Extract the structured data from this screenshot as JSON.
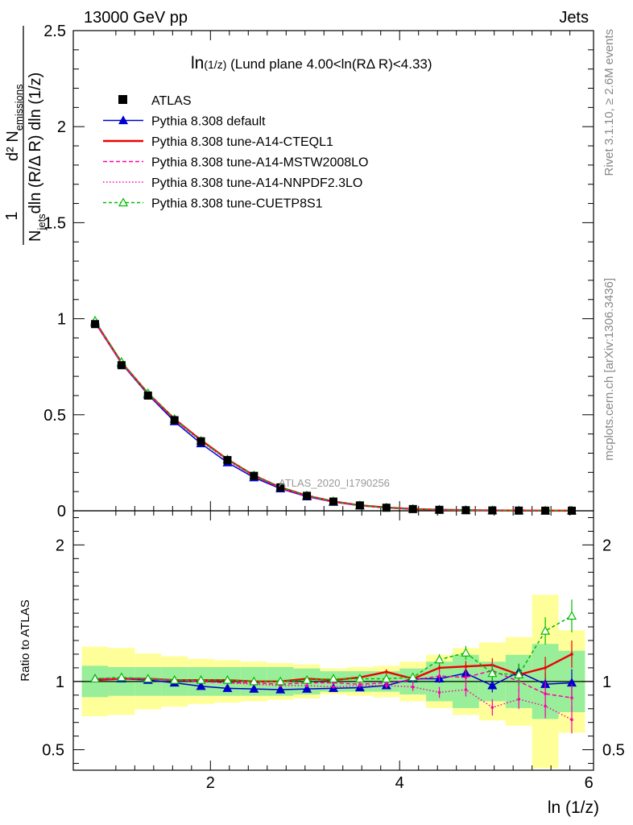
{
  "header": {
    "left": "13000 GeV pp",
    "right": "Jets",
    "side_label_top": "Rivet 3.1.10, ≥ 2.6M events",
    "side_label_bottom": "mcplots.cern.ch [arXiv:1306.3436]",
    "watermark": "ATLAS_2020_I1790256"
  },
  "chart_data": {
    "type": "line",
    "title": "ln(1/z) (Lund plane 4.00<ln(RΔ R)<4.33)",
    "title_main": "ln",
    "title_small": "(1/z)",
    "title_rest": " (Lund plane 4.00<ln(RΔ R)<4.33)",
    "xlabel": "ln (1/z)",
    "ylabel_numerator": "1",
    "ylabel_denominator": "N",
    "ylabel_d2": "d² N",
    "ylabel_emissions": "emissions",
    "ylabel_jets": "jets",
    "ylabel_rest": "dln (R/Δ R) dln (1/z)",
    "ratio_ylabel": "Ratio to ATLAS",
    "xlim": [
      0.55,
      6.05
    ],
    "ylim": [
      0,
      2.5
    ],
    "ratio_ylim": [
      0.35,
      2.25
    ],
    "xticks": [
      2,
      4,
      6
    ],
    "xtick_labels": [
      "2",
      "4",
      "6"
    ],
    "yticks": [
      0,
      0.5,
      1,
      1.5,
      2,
      2.5
    ],
    "ytick_labels": [
      "0",
      "0.5",
      "1",
      "1.5",
      "2",
      "2.5"
    ],
    "ratio_yticks": [
      0.5,
      1,
      2
    ],
    "ratio_ytick_labels": [
      "0.5",
      "1",
      "2"
    ],
    "x": [
      0.78,
      1.06,
      1.34,
      1.62,
      1.9,
      2.18,
      2.46,
      2.74,
      3.02,
      3.3,
      3.58,
      3.86,
      4.14,
      4.42,
      4.7,
      4.98,
      5.26,
      5.54,
      5.82
    ],
    "data": {
      "name": "ATLAS",
      "values": [
        0.972,
        0.758,
        0.6,
        0.472,
        0.362,
        0.264,
        0.182,
        0.122,
        0.078,
        0.048,
        0.028,
        0.016,
        0.009,
        0.005,
        0.003,
        0.0018,
        0.001,
        0.0006,
        0.0004
      ],
      "band_inner": [
        0.115,
        0.105,
        0.105,
        0.105,
        0.105,
        0.105,
        0.105,
        0.105,
        0.095,
        0.075,
        0.075,
        0.075,
        0.095,
        0.145,
        0.195,
        0.145,
        0.195,
        0.275,
        0.225
      ],
      "band_outer": [
        0.255,
        0.245,
        0.205,
        0.185,
        0.165,
        0.155,
        0.145,
        0.135,
        0.125,
        0.095,
        0.105,
        0.115,
        0.145,
        0.195,
        0.245,
        0.285,
        0.325,
        0.635,
        0.375
      ]
    },
    "series": [
      {
        "name": "Pythia 8.308 default",
        "color": "#0000cc",
        "marker": "triangle-filled",
        "dash": "",
        "values": [
          0.98,
          0.767,
          0.605,
          0.465,
          0.35,
          0.251,
          0.173,
          0.115,
          0.074,
          0.0455,
          0.0268,
          0.0155,
          0.0091,
          0.0051,
          0.0032,
          0.00175,
          0.00108,
          0.00054,
          0.00039
        ],
        "ratio": [
          1.02,
          1.02,
          1.01,
          0.99,
          0.965,
          0.95,
          0.945,
          0.94,
          0.945,
          0.95,
          0.955,
          0.97,
          1.02,
          1.02,
          1.06,
          0.97,
          1.07,
          0.98,
          0.99
        ],
        "err": [
          0.01,
          0.01,
          0.01,
          0.01,
          0.01,
          0.01,
          0.01,
          0.01,
          0.01,
          0.01,
          0.01,
          0.015,
          0.02,
          0.03,
          0.04,
          0.05,
          0.06,
          0.08,
          0.1
        ]
      },
      {
        "name": "Pythia 8.308 tune-A14-CTEQL1",
        "color": "#ee0000",
        "marker": "",
        "dash": "",
        "values": [
          0.985,
          0.772,
          0.612,
          0.478,
          0.368,
          0.268,
          0.184,
          0.122,
          0.079,
          0.0485,
          0.0285,
          0.0172,
          0.0092,
          0.0055,
          0.0033,
          0.002,
          0.00105,
          0.00064,
          0.00048
        ],
        "ratio": [
          1.01,
          1.02,
          1.02,
          1.01,
          1.01,
          1.01,
          1.0,
          1.0,
          1.02,
          1.01,
          1.03,
          1.07,
          1.02,
          1.1,
          1.11,
          1.12,
          1.05,
          1.1,
          1.2
        ],
        "err": [
          0.01,
          0.01,
          0.01,
          0.01,
          0.01,
          0.01,
          0.01,
          0.01,
          0.01,
          0.01,
          0.015,
          0.02,
          0.02,
          0.03,
          0.04,
          0.05,
          0.06,
          0.08,
          0.1
        ]
      },
      {
        "name": "Pythia 8.308 tune-A14-MSTW2008LO",
        "color": "#ff00aa",
        "marker": "",
        "dash": "5,3",
        "values": [
          0.98,
          0.77,
          0.61,
          0.475,
          0.364,
          0.266,
          0.181,
          0.119,
          0.077,
          0.047,
          0.0275,
          0.0158,
          0.0092,
          0.0052,
          0.0032,
          0.0019,
          0.00102,
          0.00058,
          0.00038
        ],
        "ratio": [
          1.02,
          1.02,
          1.02,
          1.01,
          1.0,
          0.99,
          0.99,
          0.98,
          0.99,
          0.99,
          0.98,
          0.99,
          1.01,
          1.04,
          1.03,
          1.08,
          1.0,
          0.91,
          0.88
        ],
        "err": [
          0.01,
          0.01,
          0.01,
          0.01,
          0.01,
          0.01,
          0.01,
          0.01,
          0.01,
          0.01,
          0.015,
          0.02,
          0.03,
          0.04,
          0.05,
          0.06,
          0.07,
          0.09,
          0.1
        ]
      },
      {
        "name": "Pythia 8.308 tune-A14-NNPDF2.3LO",
        "color": "#ff00aa",
        "marker": "",
        "dash": "1.5,2.5",
        "values": [
          0.978,
          0.768,
          0.608,
          0.473,
          0.362,
          0.262,
          0.18,
          0.118,
          0.0755,
          0.046,
          0.027,
          0.0155,
          0.0086,
          0.0046,
          0.0028,
          0.00145,
          0.00088,
          0.00048,
          0.00032
        ],
        "ratio": [
          1.02,
          1.02,
          1.02,
          1.01,
          1.0,
          0.99,
          0.98,
          0.97,
          0.97,
          0.96,
          0.97,
          0.97,
          0.96,
          0.92,
          0.94,
          0.81,
          0.87,
          0.82,
          0.72
        ],
        "err": [
          0.01,
          0.01,
          0.01,
          0.01,
          0.01,
          0.01,
          0.01,
          0.01,
          0.01,
          0.01,
          0.015,
          0.02,
          0.03,
          0.04,
          0.05,
          0.06,
          0.07,
          0.09,
          0.1
        ]
      },
      {
        "name": "Pythia 8.308 tune-CUETP8S1",
        "color": "#00bb00",
        "marker": "triangle-open",
        "dash": "4,3",
        "values": [
          0.99,
          0.775,
          0.612,
          0.478,
          0.364,
          0.268,
          0.184,
          0.124,
          0.08,
          0.0497,
          0.0286,
          0.0166,
          0.0093,
          0.0058,
          0.0036,
          0.0019,
          0.00105,
          0.00083,
          0.00059
        ],
        "ratio": [
          1.02,
          1.03,
          1.02,
          1.01,
          1.01,
          1.01,
          1.0,
          1.0,
          1.01,
          1.02,
          1.02,
          1.02,
          1.03,
          1.16,
          1.21,
          1.06,
          1.05,
          1.37,
          1.48
        ],
        "err": [
          0.01,
          0.01,
          0.01,
          0.01,
          0.01,
          0.01,
          0.01,
          0.01,
          0.01,
          0.01,
          0.015,
          0.02,
          0.03,
          0.04,
          0.05,
          0.06,
          0.08,
          0.1,
          0.12
        ]
      }
    ]
  }
}
